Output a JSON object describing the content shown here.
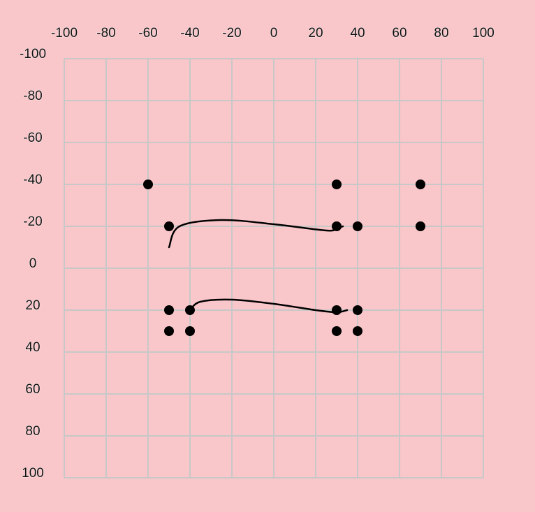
{
  "chart_data": {
    "type": "scatter",
    "title": "",
    "xlabel": "",
    "ylabel": "",
    "xlim": [
      -100,
      100
    ],
    "ylim": [
      -100,
      100
    ],
    "y_axis_inverted": true,
    "x_axis_position": "top",
    "y_axis_position": "left",
    "grid": true,
    "x_ticks": [
      -100,
      -80,
      -60,
      -40,
      -20,
      0,
      20,
      40,
      60,
      80,
      100
    ],
    "y_ticks": [
      -100,
      -80,
      -60,
      -40,
      -20,
      0,
      20,
      40,
      60,
      80,
      100
    ],
    "x_tick_labels": [
      "-100",
      "-80",
      "-60",
      "-40",
      "-20",
      "0",
      "20",
      "40",
      "60",
      "80",
      "100"
    ],
    "y_tick_labels": [
      "-100",
      "-80",
      "-60",
      "-40",
      "-20",
      "0",
      "20",
      "40",
      "60",
      "80",
      "100"
    ],
    "points": [
      {
        "x": -60,
        "y": -40
      },
      {
        "x": 30,
        "y": -40
      },
      {
        "x": 70,
        "y": -40
      },
      {
        "x": -50,
        "y": -20
      },
      {
        "x": 30,
        "y": -20
      },
      {
        "x": 40,
        "y": -20
      },
      {
        "x": 70,
        "y": -20
      },
      {
        "x": -50,
        "y": 20
      },
      {
        "x": -40,
        "y": 20
      },
      {
        "x": 30,
        "y": 20
      },
      {
        "x": 40,
        "y": 20
      },
      {
        "x": -50,
        "y": 30
      },
      {
        "x": -40,
        "y": 30
      },
      {
        "x": 30,
        "y": 30
      },
      {
        "x": 40,
        "y": 30
      }
    ],
    "curves": [
      {
        "points": [
          [
            -50,
            -10
          ],
          [
            -45,
            -20
          ],
          [
            -25,
            -23
          ],
          [
            0,
            -21
          ],
          [
            25,
            -18
          ],
          [
            30,
            -19
          ],
          [
            33,
            -20
          ]
        ]
      },
      {
        "points": [
          [
            -40,
            20
          ],
          [
            -35,
            16
          ],
          [
            -20,
            15
          ],
          [
            0,
            17
          ],
          [
            20,
            20
          ],
          [
            30,
            21
          ],
          [
            35,
            20
          ]
        ]
      }
    ],
    "colors": {
      "background": "#f9c6c9",
      "grid": "#c8c8c8",
      "marker": "#000000",
      "curve": "#000000",
      "text": "#111111"
    }
  }
}
